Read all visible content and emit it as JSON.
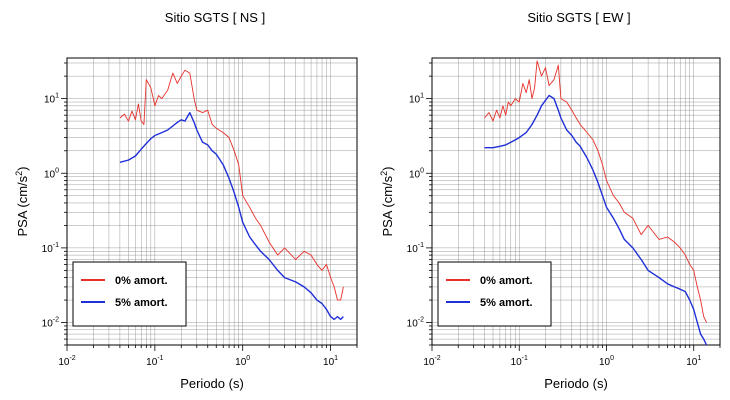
{
  "chart_data": [
    {
      "type": "line",
      "title": "Sitio SGTS [ NS ]",
      "xlabel": "Periodo (s)",
      "ylabel_main": "PSA (cm/s",
      "ylabel_sup": "2",
      "ylabel_tail": ")",
      "x_scale": "log",
      "y_scale": "log",
      "xlim": [
        0.01,
        20
      ],
      "ylim": [
        0.005,
        35
      ],
      "grid": true,
      "legend_position": "bottom-left",
      "x_ticks": [
        {
          "base": "10",
          "exp": "-2"
        },
        {
          "base": "10",
          "exp": "-1"
        },
        {
          "base": "10",
          "exp": "0"
        },
        {
          "base": "10",
          "exp": "1"
        }
      ],
      "y_ticks": [
        {
          "base": "10",
          "exp": "-2"
        },
        {
          "base": "10",
          "exp": "-1"
        },
        {
          "base": "10",
          "exp": "0"
        },
        {
          "base": "10",
          "exp": "1"
        }
      ],
      "series": [
        {
          "name": "0% amort.",
          "color": "#e8302a",
          "x": [
            0.04,
            0.045,
            0.05,
            0.055,
            0.06,
            0.065,
            0.07,
            0.075,
            0.08,
            0.09,
            0.1,
            0.11,
            0.12,
            0.14,
            0.16,
            0.18,
            0.2,
            0.22,
            0.25,
            0.28,
            0.3,
            0.35,
            0.4,
            0.45,
            0.5,
            0.6,
            0.7,
            0.8,
            0.9,
            1.0,
            1.2,
            1.4,
            1.6,
            2.0,
            2.5,
            3.0,
            4.0,
            5.0,
            6.0,
            7.0,
            8.0,
            9.0,
            10.0,
            11.0,
            12.0,
            13.0,
            14.0
          ],
          "y": [
            5.5,
            6.2,
            5.0,
            6.8,
            5.2,
            8.5,
            5.0,
            4.5,
            18,
            14,
            8,
            11,
            10,
            13,
            22,
            16,
            20,
            24,
            22,
            10,
            7,
            6.5,
            7,
            4.5,
            4,
            3.5,
            3,
            2,
            1.3,
            0.5,
            0.35,
            0.25,
            0.2,
            0.12,
            0.08,
            0.1,
            0.07,
            0.09,
            0.08,
            0.06,
            0.05,
            0.06,
            0.04,
            0.03,
            0.02,
            0.02,
            0.03
          ]
        },
        {
          "name": "5% amort.",
          "color": "#1f2fd8",
          "x": [
            0.04,
            0.05,
            0.06,
            0.07,
            0.08,
            0.09,
            0.1,
            0.12,
            0.14,
            0.16,
            0.18,
            0.2,
            0.22,
            0.25,
            0.28,
            0.3,
            0.35,
            0.4,
            0.45,
            0.5,
            0.6,
            0.7,
            0.8,
            0.9,
            1.0,
            1.2,
            1.4,
            1.6,
            2.0,
            2.5,
            3.0,
            4.0,
            5.0,
            6.0,
            7.0,
            8.0,
            9.0,
            10.0,
            11.0,
            12.0,
            13.0,
            14.0
          ],
          "y": [
            1.4,
            1.5,
            1.7,
            2.1,
            2.5,
            2.9,
            3.2,
            3.5,
            3.8,
            4.3,
            4.8,
            5.2,
            5.0,
            6.5,
            4.8,
            3.8,
            2.6,
            2.4,
            2.0,
            1.8,
            1.3,
            0.85,
            0.55,
            0.35,
            0.22,
            0.14,
            0.11,
            0.09,
            0.07,
            0.05,
            0.04,
            0.035,
            0.03,
            0.025,
            0.02,
            0.018,
            0.015,
            0.012,
            0.011,
            0.012,
            0.011,
            0.012
          ]
        }
      ]
    },
    {
      "type": "line",
      "title": "Sitio SGTS [ EW ]",
      "xlabel": "Periodo (s)",
      "ylabel_main": "PSA (cm/s",
      "ylabel_sup": "2",
      "ylabel_tail": ")",
      "x_scale": "log",
      "y_scale": "log",
      "xlim": [
        0.01,
        20
      ],
      "ylim": [
        0.005,
        35
      ],
      "grid": true,
      "legend_position": "bottom-left",
      "x_ticks": [
        {
          "base": "10",
          "exp": "-2"
        },
        {
          "base": "10",
          "exp": "-1"
        },
        {
          "base": "10",
          "exp": "0"
        },
        {
          "base": "10",
          "exp": "1"
        }
      ],
      "y_ticks": [
        {
          "base": "10",
          "exp": "-2"
        },
        {
          "base": "10",
          "exp": "-1"
        },
        {
          "base": "10",
          "exp": "0"
        },
        {
          "base": "10",
          "exp": "1"
        }
      ],
      "series": [
        {
          "name": "0% amort.",
          "color": "#e8302a",
          "x": [
            0.04,
            0.045,
            0.05,
            0.055,
            0.06,
            0.065,
            0.07,
            0.075,
            0.08,
            0.09,
            0.1,
            0.11,
            0.12,
            0.13,
            0.14,
            0.15,
            0.16,
            0.18,
            0.2,
            0.22,
            0.25,
            0.28,
            0.3,
            0.35,
            0.4,
            0.45,
            0.5,
            0.6,
            0.7,
            0.8,
            0.9,
            1.0,
            1.2,
            1.4,
            1.6,
            2.0,
            2.5,
            3.0,
            4.0,
            5.0,
            6.0,
            7.0,
            8.0,
            9.0,
            10.0,
            11.0,
            12.0,
            13.0,
            14.0
          ],
          "y": [
            5.5,
            6.5,
            5.0,
            7.0,
            5.5,
            8.0,
            6.0,
            9.0,
            8.0,
            10.0,
            9.0,
            16.0,
            12.0,
            18.0,
            10.0,
            14.0,
            32.0,
            20.0,
            26.0,
            15.0,
            18.0,
            28.0,
            10.0,
            9.0,
            7.0,
            5.5,
            4.5,
            3.5,
            2.8,
            2.0,
            1.3,
            0.8,
            0.5,
            0.4,
            0.3,
            0.25,
            0.15,
            0.2,
            0.13,
            0.14,
            0.12,
            0.1,
            0.08,
            0.06,
            0.05,
            0.03,
            0.02,
            0.012,
            0.01
          ]
        },
        {
          "name": "5% amort.",
          "color": "#1f2fd8",
          "x": [
            0.04,
            0.05,
            0.06,
            0.07,
            0.08,
            0.09,
            0.1,
            0.12,
            0.14,
            0.16,
            0.18,
            0.2,
            0.22,
            0.25,
            0.28,
            0.3,
            0.35,
            0.4,
            0.45,
            0.5,
            0.6,
            0.7,
            0.8,
            0.9,
            1.0,
            1.2,
            1.4,
            1.6,
            2.0,
            2.5,
            3.0,
            4.0,
            5.0,
            6.0,
            7.0,
            8.0,
            9.0,
            10.0,
            11.0,
            12.0,
            13.0,
            14.0
          ],
          "y": [
            2.2,
            2.2,
            2.3,
            2.4,
            2.6,
            2.8,
            3.0,
            3.5,
            4.5,
            6.0,
            8.0,
            9.5,
            11.0,
            10.0,
            7.0,
            5.5,
            3.8,
            3.2,
            2.6,
            2.3,
            1.6,
            1.1,
            0.75,
            0.5,
            0.35,
            0.25,
            0.18,
            0.13,
            0.1,
            0.07,
            0.05,
            0.04,
            0.033,
            0.03,
            0.028,
            0.026,
            0.02,
            0.015,
            0.01,
            0.007,
            0.006,
            0.005
          ]
        }
      ]
    }
  ]
}
